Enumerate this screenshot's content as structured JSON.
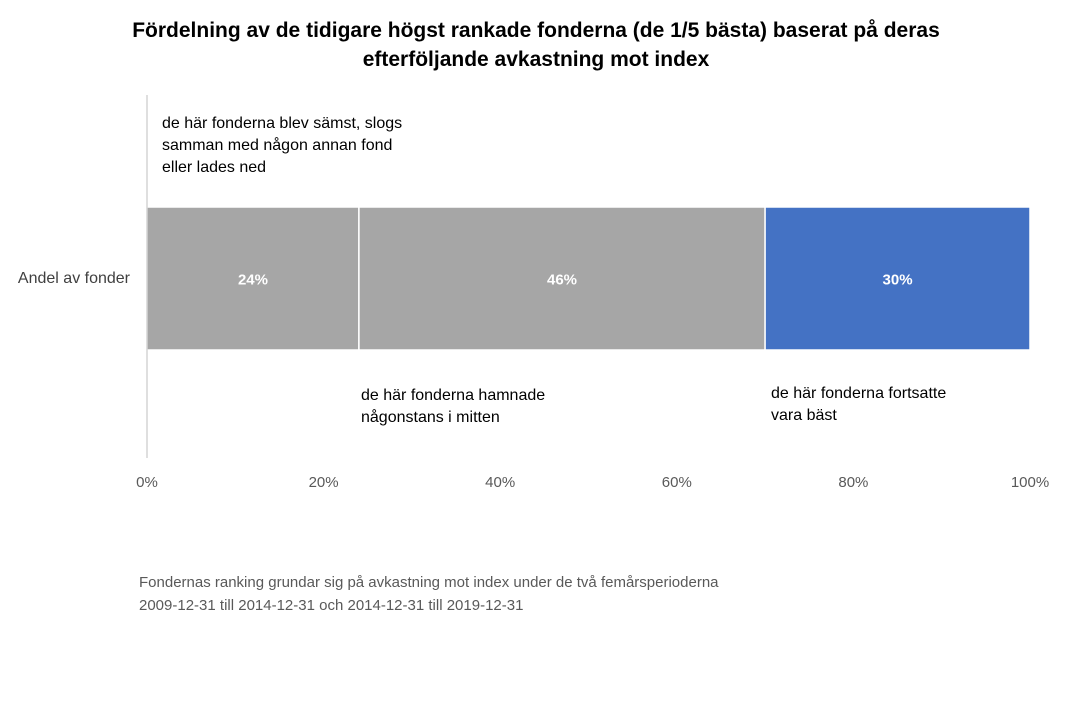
{
  "chart_data": {
    "type": "bar",
    "orientation": "horizontal",
    "stacked": true,
    "title_lines": [
      "Fördelning av de tidigare högst rankade fonderna (de 1/5 bästa) baserat på deras",
      "efterföljande avkastning mot index"
    ],
    "categories": [
      "Andel av fonder"
    ],
    "segments": [
      {
        "value": 24,
        "label": "24%",
        "color": "#a6a6a6"
      },
      {
        "value": 46,
        "label": "46%",
        "color": "#a6a6a6"
      },
      {
        "value": 30,
        "label": "30%",
        "color": "#4472c4"
      }
    ],
    "xlim": [
      0,
      100
    ],
    "xticks": [
      "0%",
      "20%",
      "40%",
      "60%",
      "80%",
      "100%"
    ],
    "grid": false,
    "label_color": "#ffffff"
  },
  "annotations": {
    "worst": [
      "de här fonderna blev sämst, slogs",
      "samman med någon annan fond",
      "eller lades ned"
    ],
    "middle": [
      "de här fonderna hamnade",
      "någonstans i mitten"
    ],
    "best": [
      "de här fonderna fortsatte",
      "vara bäst"
    ]
  },
  "footnote": [
    "Fondernas ranking grundar sig på avkastning mot index under de två femårsperioderna",
    "2009-12-31 till 2014-12-31 och 2014-12-31 till 2019-12-31"
  ]
}
